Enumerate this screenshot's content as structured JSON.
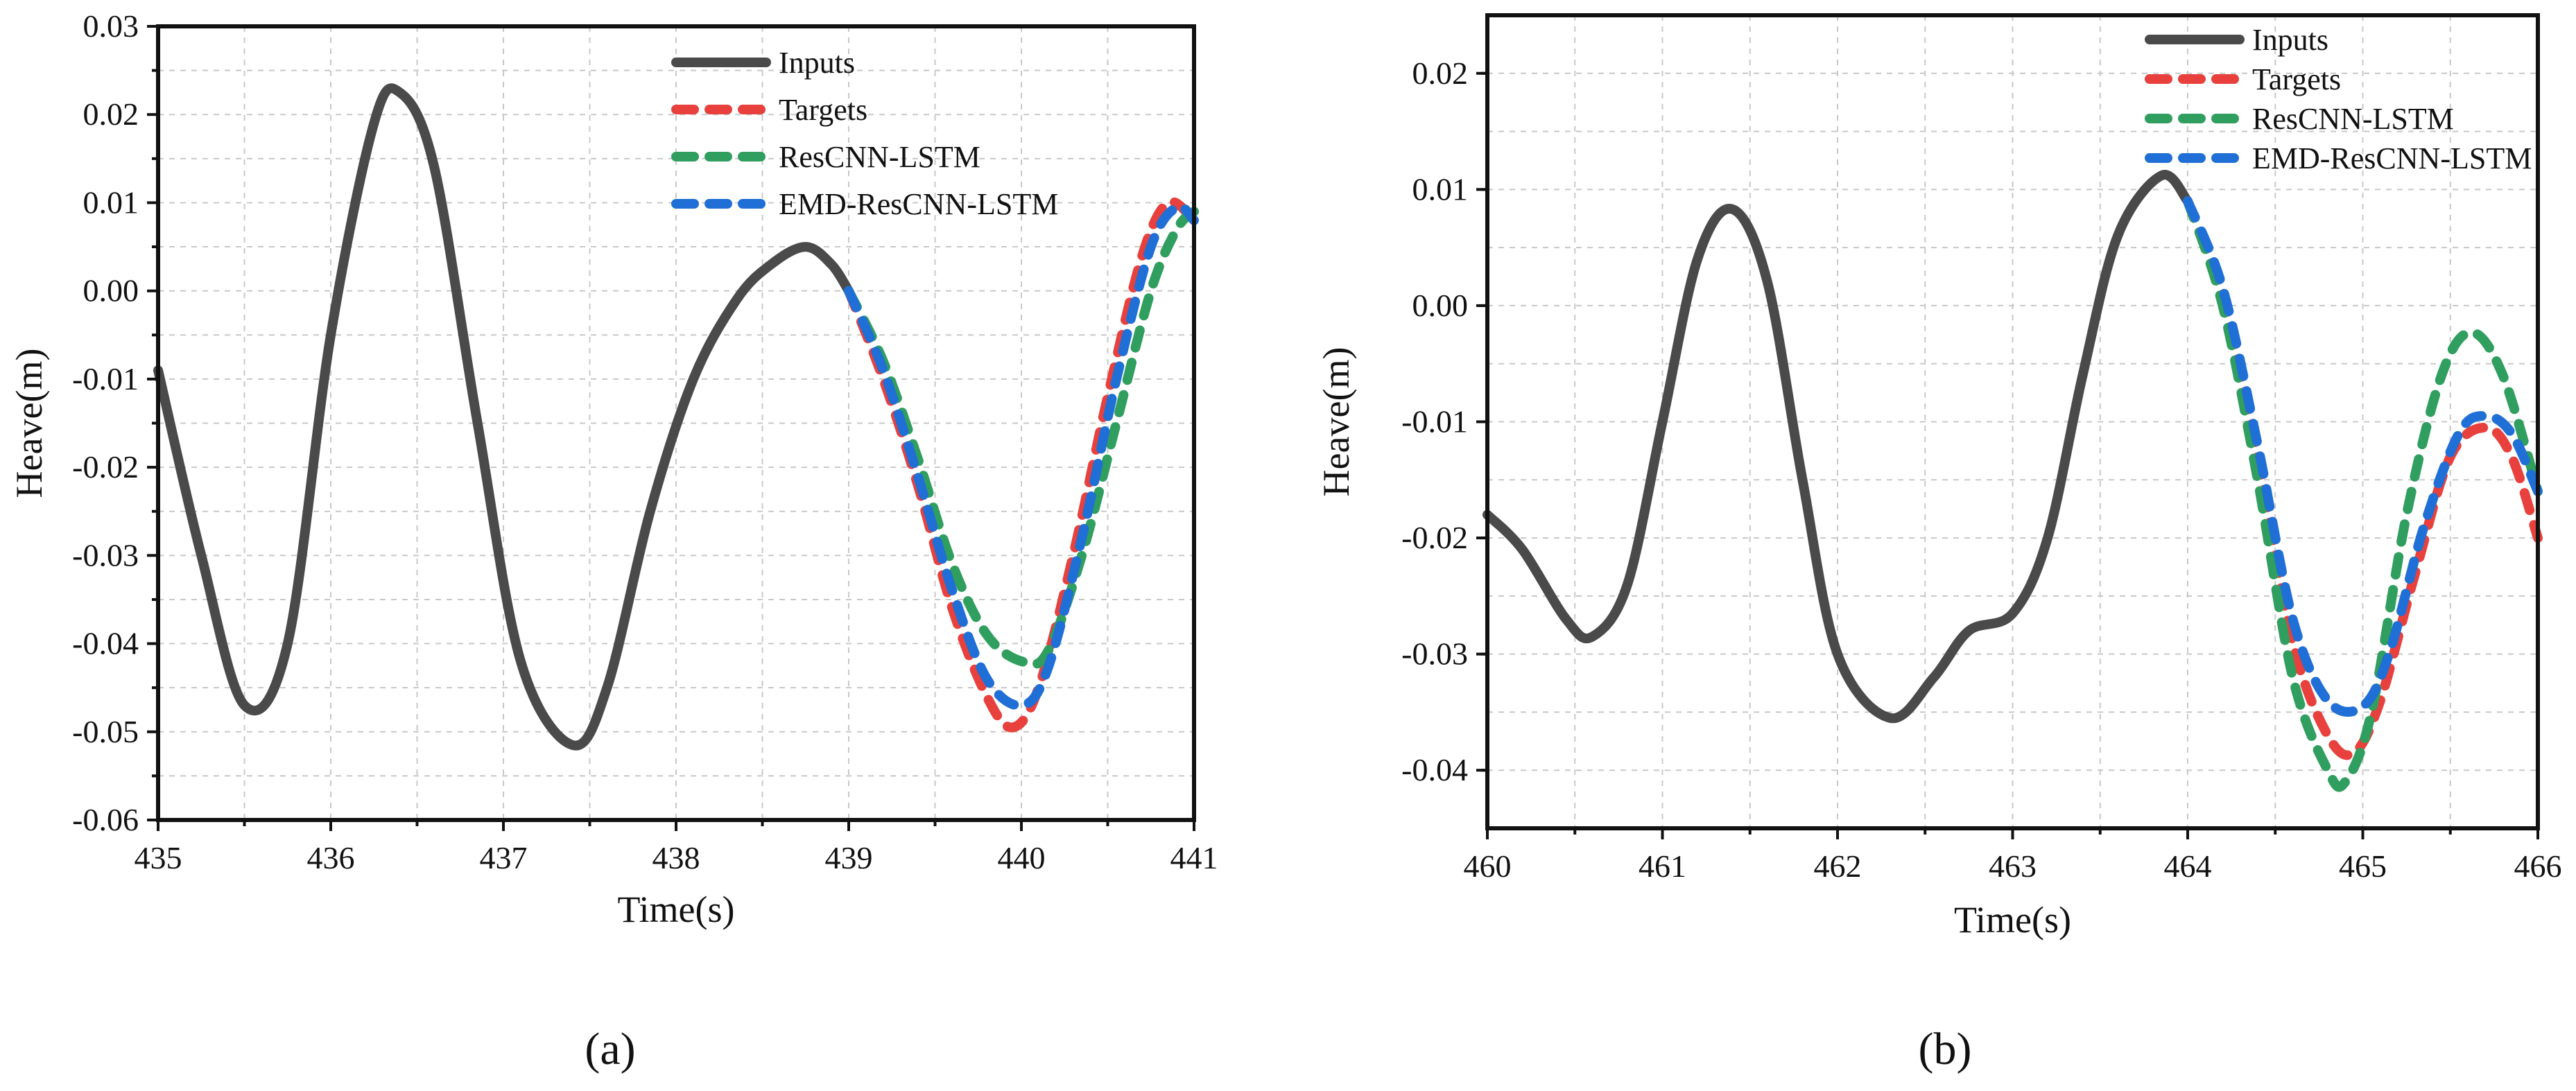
{
  "chart_data": [
    {
      "type": "line",
      "panel": "a",
      "xlabel": "Time(s)",
      "ylabel": "Heave(m)",
      "xlim": [
        435,
        441
      ],
      "ylim": [
        -0.06,
        0.03
      ],
      "xticks": [
        435,
        436,
        437,
        438,
        439,
        440,
        441
      ],
      "xtick_labels": [
        "435",
        "436",
        "437",
        "438",
        "439",
        "440",
        "441"
      ],
      "yticks": [
        -0.06,
        -0.05,
        -0.04,
        -0.03,
        -0.02,
        -0.01,
        0.0,
        0.01,
        0.02,
        0.03
      ],
      "ytick_labels": [
        "-0.06",
        "-0.05",
        "-0.04",
        "-0.03",
        "-0.02",
        "-0.01",
        "0.00",
        "0.01",
        "0.02",
        "0.03"
      ],
      "grid": true,
      "legend_position": "top-right",
      "series": [
        {
          "name": "Inputs",
          "color": "#4a4a4a",
          "style": "solid",
          "x": [
            435.0,
            435.25,
            435.5,
            435.75,
            436.0,
            436.25,
            436.4,
            436.6,
            436.85,
            437.1,
            437.4,
            437.6,
            437.85,
            438.1,
            438.35,
            438.55,
            438.75,
            438.9,
            439.0
          ],
          "y": [
            -0.009,
            -0.03,
            -0.047,
            -0.04,
            -0.005,
            0.019,
            0.0225,
            0.014,
            -0.015,
            -0.042,
            -0.0515,
            -0.045,
            -0.025,
            -0.01,
            -0.001,
            0.003,
            0.005,
            0.003,
            0.0
          ]
        },
        {
          "name": "Targets",
          "color": "#e8403c",
          "style": "dashed",
          "x": [
            439.0,
            439.2,
            439.4,
            439.6,
            439.8,
            439.95,
            440.1,
            440.3,
            440.5,
            440.7,
            440.85,
            441.0
          ],
          "y": [
            0.0,
            -0.01,
            -0.022,
            -0.036,
            -0.046,
            -0.0495,
            -0.045,
            -0.03,
            -0.012,
            0.004,
            0.01,
            0.008
          ]
        },
        {
          "name": "ResCNN-LSTM",
          "color": "#2f9e5e",
          "style": "dashed",
          "x": [
            439.0,
            439.2,
            439.4,
            439.6,
            439.8,
            440.0,
            440.15,
            440.35,
            440.55,
            440.75,
            440.9,
            441.0
          ],
          "y": [
            0.0,
            -0.008,
            -0.019,
            -0.031,
            -0.039,
            -0.042,
            -0.041,
            -0.03,
            -0.015,
            0.0,
            0.007,
            0.009
          ]
        },
        {
          "name": "EMD-ResCNN-LSTM",
          "color": "#1f6fd6",
          "style": "dashed",
          "x": [
            439.0,
            439.2,
            439.4,
            439.6,
            439.8,
            440.0,
            440.15,
            440.35,
            440.55,
            440.75,
            440.9,
            441.0
          ],
          "y": [
            0.0,
            -0.009,
            -0.021,
            -0.034,
            -0.044,
            -0.047,
            -0.043,
            -0.028,
            -0.01,
            0.005,
            0.0095,
            0.008
          ]
        }
      ],
      "caption": "(a)"
    },
    {
      "type": "line",
      "panel": "b",
      "xlabel": "Time(s)",
      "ylabel": "Heave(m)",
      "xlim": [
        460,
        466
      ],
      "ylim": [
        -0.045,
        0.025
      ],
      "xticks": [
        460,
        461,
        462,
        463,
        464,
        465,
        466
      ],
      "xtick_labels": [
        "460",
        "461",
        "462",
        "463",
        "464",
        "465",
        "466"
      ],
      "yticks": [
        -0.04,
        -0.03,
        -0.02,
        -0.01,
        0.0,
        0.01,
        0.02
      ],
      "ytick_labels": [
        "-0.04",
        "-0.03",
        "-0.02",
        "-0.01",
        "0.00",
        "0.01",
        "0.02"
      ],
      "grid": true,
      "legend_position": "top-right",
      "series": [
        {
          "name": "Inputs",
          "color": "#4a4a4a",
          "style": "solid",
          "x": [
            460.0,
            460.2,
            460.45,
            460.6,
            460.8,
            461.0,
            461.2,
            461.4,
            461.6,
            461.8,
            462.0,
            462.3,
            462.55,
            462.75,
            463.0,
            463.2,
            463.4,
            463.6,
            463.85,
            464.0
          ],
          "y": [
            -0.018,
            -0.021,
            -0.027,
            -0.0285,
            -0.024,
            -0.01,
            0.004,
            0.0083,
            0.002,
            -0.015,
            -0.03,
            -0.0355,
            -0.032,
            -0.028,
            -0.0265,
            -0.02,
            -0.006,
            0.006,
            0.0112,
            0.009
          ]
        },
        {
          "name": "Targets",
          "color": "#e8403c",
          "style": "dashed",
          "x": [
            464.0,
            464.2,
            464.4,
            464.6,
            464.8,
            464.95,
            465.1,
            465.3,
            465.5,
            465.7,
            465.85,
            466.0
          ],
          "y": [
            0.009,
            0.001,
            -0.013,
            -0.029,
            -0.037,
            -0.0385,
            -0.034,
            -0.023,
            -0.013,
            -0.0105,
            -0.013,
            -0.02
          ]
        },
        {
          "name": "ResCNN-LSTM",
          "color": "#2f9e5e",
          "style": "dashed",
          "x": [
            464.0,
            464.2,
            464.4,
            464.6,
            464.8,
            464.9,
            465.05,
            465.25,
            465.45,
            465.62,
            465.8,
            466.0
          ],
          "y": [
            0.009,
            0.0,
            -0.015,
            -0.032,
            -0.04,
            -0.041,
            -0.035,
            -0.018,
            -0.006,
            -0.0023,
            -0.006,
            -0.016
          ]
        },
        {
          "name": "EMD-ResCNN-LSTM",
          "color": "#1f6fd6",
          "style": "dashed",
          "x": [
            464.0,
            464.2,
            464.4,
            464.6,
            464.8,
            465.0,
            465.15,
            465.35,
            465.55,
            465.7,
            465.85,
            466.0
          ],
          "y": [
            0.009,
            0.0015,
            -0.012,
            -0.027,
            -0.034,
            -0.0345,
            -0.03,
            -0.019,
            -0.011,
            -0.0095,
            -0.011,
            -0.016
          ]
        }
      ],
      "caption": "(b)"
    }
  ]
}
